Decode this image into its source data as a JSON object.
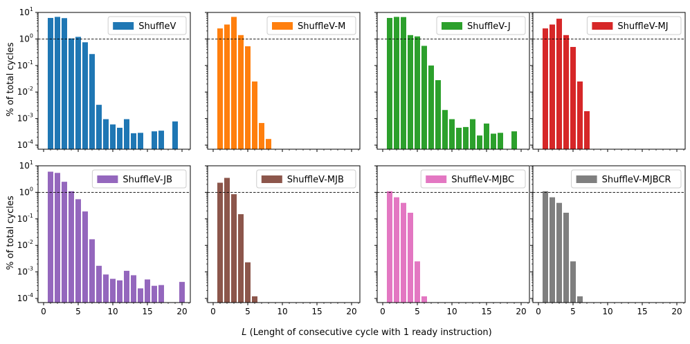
{
  "chart_data": {
    "type": "bar",
    "layout": "2x4 grid of subplots with shared axes",
    "ylabel": "% of total cycles",
    "xlabel_italic": "L",
    "xlabel_rest": " (Lenght of consecutive cycle with 1 ready instruction)",
    "yscale": "log",
    "ylim": [
      7e-05,
      10
    ],
    "ytick_labels": [
      {
        "base": "10",
        "exp": "1",
        "value": 10
      },
      {
        "base": "10",
        "exp": "0",
        "value": 1
      },
      {
        "base": "10",
        "exp": "-1",
        "value": 0.1
      },
      {
        "base": "10",
        "exp": "-2",
        "value": 0.01
      },
      {
        "base": "10",
        "exp": "-3",
        "value": 0.001
      },
      {
        "base": "10",
        "exp": "-4",
        "value": 0.0001
      }
    ],
    "xlim": [
      -0.8,
      21.2
    ],
    "xticks": [
      0,
      5,
      10,
      15,
      20
    ],
    "xtick_labels": [
      "0",
      "5",
      "10",
      "15",
      "20"
    ],
    "reference_line": {
      "y": 1,
      "style": "dashed",
      "color": "#000000"
    },
    "legend_position": "top-right",
    "series": [
      {
        "name": "ShuffleV",
        "color": "#1f77b4",
        "x": [
          1,
          2,
          3,
          4,
          5,
          6,
          7,
          8,
          9,
          10,
          11,
          12,
          13,
          14,
          16,
          17,
          19
        ],
        "values": [
          6.2,
          6.8,
          6.1,
          1.05,
          1.2,
          0.75,
          0.27,
          0.0033,
          0.00095,
          0.0006,
          0.00045,
          0.00095,
          0.00028,
          0.00029,
          0.00033,
          0.00035,
          0.00078
        ]
      },
      {
        "name": "ShuffleV-M",
        "color": "#ff7f0e",
        "x": [
          1,
          2,
          3,
          4,
          5,
          6,
          7,
          8
        ],
        "values": [
          2.5,
          3.5,
          6.8,
          1.4,
          0.53,
          0.025,
          0.00068,
          0.00017
        ]
      },
      {
        "name": "ShuffleV-J",
        "color": "#2ca02c",
        "x": [
          1,
          2,
          3,
          4,
          5,
          6,
          7,
          8,
          9,
          10,
          11,
          12,
          13,
          14,
          15,
          16,
          17,
          19
        ],
        "values": [
          6.2,
          6.8,
          6.7,
          1.4,
          1.25,
          0.55,
          0.1,
          0.028,
          0.0021,
          0.00095,
          0.00045,
          0.00048,
          0.00095,
          0.00023,
          0.00065,
          0.00027,
          0.00029,
          0.00033
        ]
      },
      {
        "name": "ShuffleV-MJ",
        "color": "#d62728",
        "x": [
          1,
          2,
          3,
          4,
          5,
          6,
          7
        ],
        "values": [
          2.5,
          3.5,
          5.8,
          1.4,
          0.5,
          0.025,
          0.0019
        ]
      },
      {
        "name": "ShuffleV-JB",
        "color": "#9467bd",
        "x": [
          1,
          2,
          3,
          4,
          5,
          6,
          7,
          8,
          9,
          10,
          11,
          12,
          13,
          14,
          15,
          16,
          17,
          20
        ],
        "values": [
          6.0,
          5.4,
          2.5,
          1.1,
          0.55,
          0.19,
          0.017,
          0.0017,
          0.0008,
          0.00055,
          0.00048,
          0.0011,
          0.00075,
          0.00024,
          0.00052,
          0.0003,
          0.00032,
          0.00042
        ]
      },
      {
        "name": "ShuffleV-MJB",
        "color": "#8c564b",
        "x": [
          1,
          2,
          3,
          4,
          5,
          6
        ],
        "values": [
          2.3,
          3.5,
          0.85,
          0.15,
          0.0023,
          0.00012
        ]
      },
      {
        "name": "ShuffleV-MJBC",
        "color": "#e377c2",
        "x": [
          1,
          2,
          3,
          4,
          5,
          6
        ],
        "values": [
          1.1,
          0.65,
          0.4,
          0.17,
          0.0025,
          0.00012
        ]
      },
      {
        "name": "ShuffleV-MJBCR",
        "color": "#7f7f7f",
        "x": [
          1,
          2,
          3,
          4,
          5,
          6
        ],
        "values": [
          1.1,
          0.65,
          0.4,
          0.17,
          0.0025,
          0.00012
        ]
      }
    ]
  }
}
